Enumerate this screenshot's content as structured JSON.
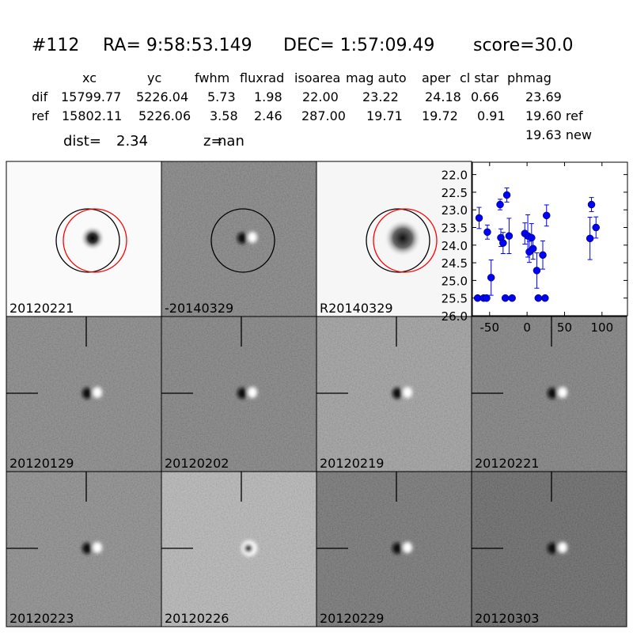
{
  "header": {
    "id": "#112",
    "ra": "RA= 9:58:53.149",
    "dec": "DEC= 1:57:09.49",
    "score": "score=30.0"
  },
  "table": {
    "columns": [
      "xc",
      "yc",
      "fwhm",
      "fluxrad",
      "isoarea",
      "mag auto",
      "aper",
      "cl star",
      "phmag"
    ],
    "rows": [
      {
        "label": "dif",
        "values": [
          "15799.77",
          "5226.04",
          "5.73",
          "1.98",
          "22.00",
          "23.22",
          "24.18",
          "0.66",
          "23.69"
        ]
      },
      {
        "label": "ref",
        "values": [
          "15802.11",
          "5226.06",
          "3.58",
          "2.46",
          "287.00",
          "19.71",
          "19.72",
          "0.91",
          "19.60 ref"
        ]
      }
    ],
    "note": "19.63 new"
  },
  "stats": {
    "dist_label": "dist=",
    "dist": 2.34,
    "z_label": "z=",
    "z": "nan"
  },
  "panels": [
    {
      "label": "20120221"
    },
    {
      "label": "-20140329"
    },
    {
      "label": "R20140329"
    },
    {
      "label": "20120129"
    },
    {
      "label": "20120202"
    },
    {
      "label": "20120219"
    },
    {
      "label": "20120221",
      "label_color": "#ff0000"
    },
    {
      "label": "20120223"
    },
    {
      "label": "20120226"
    },
    {
      "label": "20120229"
    },
    {
      "label": "20120303"
    }
  ],
  "chart_data": {
    "type": "scatter",
    "color": "#0000ff",
    "x": [
      -66,
      -58,
      -54,
      -64,
      -53,
      -48,
      -36,
      -35,
      -32,
      -27,
      -24,
      -29,
      -20,
      -3,
      1,
      3,
      6,
      8,
      13,
      15,
      21,
      24,
      26,
      84,
      86,
      92
    ],
    "values": [
      25.5,
      25.5,
      25.5,
      23.23,
      23.63,
      24.92,
      22.85,
      23.79,
      23.94,
      22.58,
      23.74,
      25.5,
      25.5,
      23.67,
      23.74,
      24.19,
      23.79,
      24.1,
      24.72,
      25.5,
      24.28,
      25.5,
      23.16,
      23.81,
      22.85,
      23.5
    ],
    "errors": [
      null,
      null,
      null,
      0.3,
      0.2,
      0.5,
      0.15,
      0.25,
      0.3,
      0.2,
      0.5,
      null,
      null,
      0.3,
      0.6,
      0.3,
      0.4,
      0.3,
      0.5,
      null,
      0.4,
      null,
      0.3,
      0.6,
      0.2,
      0.3
    ],
    "xlim": [
      -73,
      134
    ],
    "ylim": [
      26.0,
      21.65
    ],
    "xticks": [
      -50,
      0,
      50,
      100
    ],
    "yticks": [
      {
        "value": 22,
        "label": "22.0"
      },
      {
        "value": 22.5,
        "label": "22.5"
      },
      {
        "value": 23,
        "label": "23.0"
      },
      {
        "value": 23.5,
        "label": "23.5"
      },
      {
        "value": 24,
        "label": "24.0"
      },
      {
        "value": 24.5,
        "label": "24.5"
      },
      {
        "value": 25,
        "label": "25.0"
      },
      {
        "value": 25.5,
        "label": "25.5"
      },
      {
        "value": 26,
        "label": "26.0"
      }
    ]
  }
}
